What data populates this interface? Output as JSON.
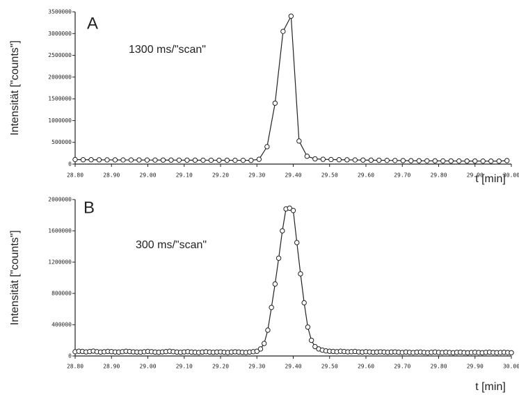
{
  "chart_data": [
    {
      "type": "line",
      "label": "A",
      "annotation": "1300 ms/\"scan\"",
      "ylabel": "Intensität [\"counts\"]",
      "xlabel": "t [min]",
      "color": "#222222",
      "grid": false,
      "xlim": [
        28.8,
        30.0
      ],
      "ylim": [
        0,
        3500000
      ],
      "xticks": [
        {
          "value": 28.8,
          "label": "28.80"
        },
        {
          "value": 28.9,
          "label": "28.90"
        },
        {
          "value": 29.0,
          "label": "29.00"
        },
        {
          "value": 29.1,
          "label": "29.10"
        },
        {
          "value": 29.2,
          "label": "29.20"
        },
        {
          "value": 29.3,
          "label": "29.30"
        },
        {
          "value": 29.4,
          "label": "29.40"
        },
        {
          "value": 29.5,
          "label": "29.50"
        },
        {
          "value": 29.6,
          "label": "29.60"
        },
        {
          "value": 29.7,
          "label": "29.70"
        },
        {
          "value": 29.8,
          "label": "29.80"
        },
        {
          "value": 29.9,
          "label": "29.90"
        },
        {
          "value": 30.0,
          "label": "30.00"
        }
      ],
      "yticks": [
        0,
        500000,
        1000000,
        1500000,
        2000000,
        2500000,
        3000000,
        3500000
      ],
      "x": [
        28.8,
        28.822,
        28.844,
        28.866,
        28.888,
        28.91,
        28.932,
        28.954,
        28.976,
        28.998,
        29.02,
        29.042,
        29.064,
        29.086,
        29.108,
        29.13,
        29.152,
        29.174,
        29.196,
        29.218,
        29.24,
        29.262,
        29.284,
        29.306,
        29.328,
        29.35,
        29.372,
        29.394,
        29.416,
        29.438,
        29.46,
        29.482,
        29.504,
        29.526,
        29.548,
        29.57,
        29.592,
        29.614,
        29.636,
        29.658,
        29.68,
        29.702,
        29.724,
        29.746,
        29.768,
        29.79,
        29.812,
        29.834,
        29.856,
        29.878,
        29.9,
        29.922,
        29.944,
        29.966,
        29.988
      ],
      "values": [
        105000,
        100000,
        100000,
        98000,
        97000,
        96000,
        95000,
        95000,
        94000,
        93000,
        93000,
        92000,
        92000,
        91000,
        90000,
        90000,
        89000,
        89000,
        88000,
        88000,
        87000,
        87000,
        86000,
        110000,
        400000,
        1400000,
        3050000,
        3400000,
        530000,
        180000,
        120000,
        110000,
        105000,
        100000,
        98000,
        95000,
        92000,
        90000,
        88000,
        85000,
        83000,
        80000,
        78000,
        76000,
        75000,
        74000,
        73000,
        72000,
        71000,
        70000,
        70000,
        69000,
        68000,
        68000,
        80000
      ]
    },
    {
      "type": "line",
      "label": "B",
      "annotation": "300 ms/\"scan\"",
      "ylabel": "Intensität [\"counts\"]",
      "xlabel": "t [min]",
      "color": "#222222",
      "grid": false,
      "xlim": [
        28.8,
        30.0
      ],
      "ylim": [
        0,
        2000000
      ],
      "xticks": [
        {
          "value": 28.8,
          "label": "28.80"
        },
        {
          "value": 28.9,
          "label": "28.90"
        },
        {
          "value": 29.0,
          "label": "29.00"
        },
        {
          "value": 29.1,
          "label": "29.10"
        },
        {
          "value": 29.2,
          "label": "29.20"
        },
        {
          "value": 29.3,
          "label": "29.30"
        },
        {
          "value": 29.4,
          "label": "29.40"
        },
        {
          "value": 29.5,
          "label": "29.50"
        },
        {
          "value": 29.6,
          "label": "29.60"
        },
        {
          "value": 29.7,
          "label": "29.70"
        },
        {
          "value": 29.8,
          "label": "29.80"
        },
        {
          "value": 29.9,
          "label": "29.90"
        },
        {
          "value": 30.0,
          "label": "30.00"
        }
      ],
      "yticks": [
        0,
        400000,
        800000,
        1200000,
        1600000,
        2000000
      ],
      "x": [
        28.8,
        28.81,
        28.82,
        28.83,
        28.84,
        28.85,
        28.86,
        28.87,
        28.88,
        28.89,
        28.9,
        28.91,
        28.92,
        28.93,
        28.94,
        28.95,
        28.96,
        28.97,
        28.98,
        28.99,
        29.0,
        29.01,
        29.02,
        29.03,
        29.04,
        29.05,
        29.06,
        29.07,
        29.08,
        29.09,
        29.1,
        29.11,
        29.12,
        29.13,
        29.14,
        29.15,
        29.16,
        29.17,
        29.18,
        29.19,
        29.2,
        29.21,
        29.22,
        29.23,
        29.24,
        29.25,
        29.26,
        29.27,
        29.28,
        29.29,
        29.3,
        29.31,
        29.32,
        29.33,
        29.34,
        29.35,
        29.36,
        29.37,
        29.38,
        29.39,
        29.4,
        29.41,
        29.42,
        29.43,
        29.44,
        29.45,
        29.46,
        29.47,
        29.48,
        29.49,
        29.5,
        29.51,
        29.52,
        29.53,
        29.54,
        29.55,
        29.56,
        29.57,
        29.58,
        29.59,
        29.6,
        29.61,
        29.62,
        29.63,
        29.64,
        29.65,
        29.66,
        29.67,
        29.68,
        29.69,
        29.7,
        29.71,
        29.72,
        29.73,
        29.74,
        29.75,
        29.76,
        29.77,
        29.78,
        29.79,
        29.8,
        29.81,
        29.82,
        29.83,
        29.84,
        29.85,
        29.86,
        29.87,
        29.88,
        29.89,
        29.9,
        29.91,
        29.92,
        29.93,
        29.94,
        29.95,
        29.96,
        29.97,
        29.98,
        29.99,
        30.0
      ],
      "values": [
        55000,
        60000,
        58000,
        52000,
        57000,
        62000,
        55000,
        50000,
        54000,
        58000,
        56000,
        52000,
        50000,
        55000,
        60000,
        57000,
        53000,
        51000,
        49000,
        54000,
        58000,
        55000,
        50000,
        48000,
        52000,
        56000,
        60000,
        55000,
        50000,
        47000,
        52000,
        55000,
        50000,
        48000,
        45000,
        50000,
        54000,
        50000,
        47000,
        50000,
        52000,
        48000,
        45000,
        50000,
        53000,
        50000,
        47000,
        45000,
        50000,
        55000,
        60000,
        90000,
        160000,
        330000,
        620000,
        920000,
        1250000,
        1600000,
        1880000,
        1890000,
        1860000,
        1450000,
        1050000,
        680000,
        370000,
        200000,
        120000,
        90000,
        75000,
        65000,
        60000,
        58000,
        55000,
        60000,
        57000,
        53000,
        55000,
        58000,
        52000,
        50000,
        55000,
        52000,
        48000,
        50000,
        53000,
        50000,
        47000,
        50000,
        52000,
        48000,
        45000,
        50000,
        47000,
        44000,
        48000,
        50000,
        46000,
        43000,
        47000,
        50000,
        46000,
        44000,
        48000,
        45000,
        42000,
        46000,
        48000,
        44000,
        42000,
        45000,
        47000,
        44000,
        42000,
        46000,
        48000,
        44000,
        43000,
        45000,
        47000,
        44000,
        42000
      ]
    }
  ]
}
